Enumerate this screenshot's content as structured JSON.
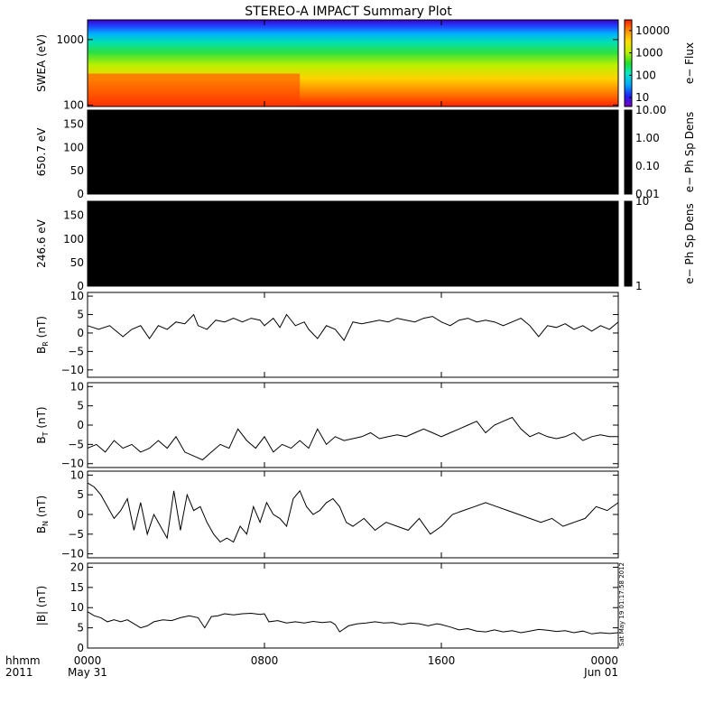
{
  "title": "STEREO-A IMPACT Summary Plot",
  "timestamp": "Sat May 19 01:17:58 2012",
  "x_axis": {
    "corner_labels": [
      "hhmm",
      "2011"
    ],
    "ticks": [
      {
        "hour": 0,
        "label": "0000",
        "sub": "May 31"
      },
      {
        "hour": 8,
        "label": "0800",
        "sub": ""
      },
      {
        "hour": 16,
        "label": "1600",
        "sub": ""
      },
      {
        "hour": 24,
        "label": "0000",
        "sub": "Jun 01"
      }
    ],
    "range_hours": [
      0,
      24
    ]
  },
  "colors": {
    "line": "#000000",
    "panel_fill": "#000000"
  },
  "chart_data": [
    {
      "type": "heatmap",
      "name": "swea",
      "ylabel": "SWEA (eV)",
      "y_scale": "log",
      "ylim": [
        95,
        2000
      ],
      "yticks": [
        100,
        1000
      ],
      "ytick_labels": [
        "100",
        "1000"
      ],
      "colorbar": {
        "label": "e− Flux",
        "scale": "log",
        "range": [
          4,
          30000
        ],
        "ticks": [
          10,
          100,
          1000,
          10000
        ],
        "tick_labels": [
          "10",
          "100",
          "1000",
          "10000"
        ]
      }
    },
    {
      "type": "heatmap",
      "name": "pad_650",
      "ylabel": "650.7 eV",
      "ylim": [
        0,
        180
      ],
      "yticks": [
        0,
        50,
        100,
        150
      ],
      "ytick_labels": [
        "0",
        "50",
        "100",
        "150"
      ],
      "colorbar": {
        "label": "e− Ph Sp Dens",
        "scale": "log",
        "range": [
          0.01,
          10
        ],
        "ticks": [
          0.01,
          0.1,
          1,
          10
        ],
        "tick_labels": [
          "0.01",
          "0.10",
          "1.00",
          "10.00"
        ]
      }
    },
    {
      "type": "heatmap",
      "name": "pad_246",
      "ylabel": "246.6 eV",
      "ylim": [
        0,
        180
      ],
      "yticks": [
        0,
        50,
        100,
        150
      ],
      "ytick_labels": [
        "0",
        "50",
        "100",
        "150"
      ],
      "colorbar": {
        "label": "e− Ph Sp Dens",
        "scale": "log",
        "range": [
          1,
          10
        ],
        "ticks": [
          1,
          10
        ],
        "tick_labels": [
          "1",
          "10"
        ]
      }
    },
    {
      "type": "line",
      "name": "br",
      "ylabel_main": "B",
      "ylabel_sub": "R",
      "ylabel_unit": " (nT)",
      "ylim": [
        -12,
        11
      ],
      "yticks": [
        -10,
        -5,
        0,
        5,
        10
      ],
      "ytick_labels": [
        "−10",
        "−5",
        "0",
        "5",
        "10"
      ],
      "x": [
        0,
        0.5,
        1,
        1.3,
        1.6,
        2,
        2.4,
        2.8,
        3.2,
        3.6,
        4,
        4.4,
        4.8,
        5,
        5.4,
        5.8,
        6.2,
        6.6,
        7,
        7.4,
        7.8,
        8,
        8.4,
        8.7,
        9,
        9.4,
        9.8,
        10,
        10.4,
        10.8,
        11.2,
        11.6,
        12,
        12.4,
        12.8,
        13.2,
        13.6,
        14,
        14.4,
        14.8,
        15.2,
        15.6,
        16,
        16.4,
        16.8,
        17.2,
        17.6,
        18,
        18.4,
        18.8,
        19.2,
        19.6,
        20,
        20.4,
        20.8,
        21.2,
        21.6,
        22,
        22.4,
        22.8,
        23.2,
        23.6,
        24
      ],
      "y": [
        2,
        1,
        2,
        0.5,
        -1,
        1,
        2,
        -1.5,
        2,
        1,
        3,
        2.5,
        5,
        2,
        1,
        3.5,
        3,
        4,
        3,
        4,
        3.5,
        2,
        4,
        1.5,
        5,
        2,
        3,
        1,
        -1.5,
        2,
        1,
        -2,
        3,
        2.5,
        3,
        3.5,
        3,
        4,
        3.5,
        3,
        4,
        4.5,
        3,
        2,
        3.5,
        4,
        3,
        3.5,
        3,
        2,
        3,
        4,
        2,
        -1,
        2,
        1.5,
        2.5,
        1,
        2,
        0.5,
        2,
        1,
        3
      ]
    },
    {
      "type": "line",
      "name": "bt",
      "ylabel_main": "B",
      "ylabel_sub": "T",
      "ylabel_unit": " (nT)",
      "ylim": [
        -11,
        11
      ],
      "yticks": [
        -10,
        -5,
        0,
        5,
        10
      ],
      "ytick_labels": [
        "−10",
        "−5",
        "0",
        "5",
        "10"
      ],
      "x": [
        0,
        0.4,
        0.8,
        1.2,
        1.6,
        2,
        2.4,
        2.8,
        3.2,
        3.6,
        4,
        4.4,
        4.8,
        5.2,
        5.6,
        6,
        6.4,
        6.8,
        7.2,
        7.6,
        8,
        8.4,
        8.8,
        9.2,
        9.6,
        10,
        10.4,
        10.8,
        11.2,
        11.6,
        12,
        12.4,
        12.8,
        13.2,
        13.6,
        14,
        14.4,
        14.8,
        15.2,
        15.6,
        16,
        16.4,
        16.8,
        17.2,
        17.6,
        18,
        18.4,
        18.8,
        19.2,
        19.6,
        20,
        20.4,
        20.8,
        21.2,
        21.6,
        22,
        22.4,
        22.8,
        23.2,
        23.6,
        24
      ],
      "y": [
        -6,
        -5,
        -7,
        -4,
        -6,
        -5,
        -7,
        -6,
        -4,
        -6,
        -3,
        -7,
        -8,
        -9,
        -7,
        -5,
        -6,
        -1,
        -4,
        -6,
        -3,
        -7,
        -5,
        -6,
        -4,
        -6,
        -1,
        -5,
        -3,
        -4,
        -3.5,
        -3,
        -2,
        -3.5,
        -3,
        -2.5,
        -3,
        -2,
        -1,
        -2,
        -3,
        -2,
        -1,
        0,
        1,
        -2,
        0,
        1,
        2,
        -1,
        -3,
        -2,
        -3,
        -3.5,
        -3,
        -2,
        -4,
        -3,
        -2.5,
        -3,
        -3
      ]
    },
    {
      "type": "line",
      "name": "bn",
      "ylabel_main": "B",
      "ylabel_sub": "N",
      "ylabel_unit": " (nT)",
      "ylim": [
        -11,
        11
      ],
      "yticks": [
        -10,
        -5,
        0,
        5,
        10
      ],
      "ytick_labels": [
        "−10",
        "−5",
        "0",
        "5",
        "10"
      ],
      "x": [
        0,
        0.3,
        0.6,
        0.9,
        1.2,
        1.5,
        1.8,
        2.1,
        2.4,
        2.7,
        3,
        3.3,
        3.6,
        3.9,
        4.2,
        4.5,
        4.8,
        5.1,
        5.4,
        5.7,
        6,
        6.3,
        6.6,
        6.9,
        7.2,
        7.5,
        7.8,
        8.1,
        8.4,
        8.7,
        9,
        9.3,
        9.6,
        9.9,
        10.2,
        10.5,
        10.8,
        11.1,
        11.4,
        11.7,
        12,
        12.5,
        13,
        13.5,
        14,
        14.5,
        15,
        15.5,
        16,
        16.5,
        17,
        17.5,
        18,
        18.5,
        19,
        19.5,
        20,
        20.5,
        21,
        21.5,
        22,
        22.5,
        23,
        23.5,
        24
      ],
      "y": [
        8,
        7,
        5,
        2,
        -1,
        1,
        4,
        -4,
        3,
        -5,
        0,
        -3,
        -6,
        6,
        -4,
        5,
        1,
        2,
        -2,
        -5,
        -7,
        -6,
        -7,
        -3,
        -5,
        2,
        -2,
        3,
        0,
        -1,
        -3,
        4,
        6,
        2,
        0,
        1,
        3,
        4,
        2,
        -2,
        -3,
        -1,
        -4,
        -2,
        -3,
        -4,
        -1,
        -5,
        -3,
        0,
        1,
        2,
        3,
        2,
        1,
        0,
        -1,
        -2,
        -1,
        -3,
        -2,
        -1,
        2,
        1,
        3
      ]
    },
    {
      "type": "line",
      "name": "bmag",
      "ylabel_main": "|B|",
      "ylabel_sub": "",
      "ylabel_unit": " (nT)",
      "ylim": [
        0,
        21
      ],
      "yticks": [
        0,
        5,
        10,
        15,
        20
      ],
      "ytick_labels": [
        "0",
        "5",
        "10",
        "15",
        "20"
      ],
      "x": [
        0,
        0.3,
        0.6,
        0.9,
        1.2,
        1.5,
        1.8,
        2.1,
        2.4,
        2.7,
        3,
        3.4,
        3.8,
        4.2,
        4.6,
        5,
        5.3,
        5.6,
        5.9,
        6.2,
        6.6,
        7,
        7.4,
        7.8,
        8,
        8.2,
        8.6,
        9,
        9.4,
        9.8,
        10.2,
        10.6,
        11,
        11.2,
        11.4,
        11.8,
        12.2,
        12.6,
        13,
        13.4,
        13.8,
        14.2,
        14.6,
        15,
        15.4,
        15.8,
        16,
        16.4,
        16.8,
        17.2,
        17.6,
        18,
        18.4,
        18.8,
        19.2,
        19.6,
        20,
        20.4,
        20.8,
        21.2,
        21.6,
        22,
        22.4,
        22.8,
        23.2,
        23.6,
        24
      ],
      "y": [
        9,
        8,
        7.5,
        6.5,
        7,
        6.5,
        7,
        6,
        5,
        5.5,
        6.5,
        7,
        6.8,
        7.5,
        8,
        7.5,
        5,
        7.8,
        8,
        8.5,
        8.2,
        8.5,
        8.6,
        8.3,
        8.5,
        6.5,
        6.8,
        6.2,
        6.5,
        6.2,
        6.6,
        6.3,
        6.5,
        5.8,
        4,
        5.5,
        6,
        6.2,
        6.5,
        6.2,
        6.3,
        5.8,
        6.2,
        6,
        5.5,
        6,
        5.8,
        5.2,
        4.5,
        4.8,
        4.2,
        4,
        4.5,
        4,
        4.3,
        3.8,
        4.2,
        4.6,
        4.4,
        4.1,
        4.3,
        3.8,
        4.2,
        3.5,
        3.8,
        3.6,
        3.8
      ]
    }
  ]
}
